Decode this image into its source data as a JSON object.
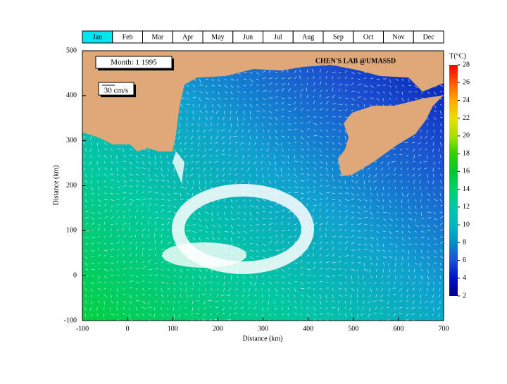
{
  "chart_data": {
    "type": "map",
    "months": [
      {
        "label": "Jan",
        "active": true
      },
      {
        "label": "Feb",
        "active": false
      },
      {
        "label": "Mar",
        "active": false
      },
      {
        "label": "Apr",
        "active": false
      },
      {
        "label": "May",
        "active": false
      },
      {
        "label": "Jun",
        "active": false
      },
      {
        "label": "Jul",
        "active": false
      },
      {
        "label": "Aug",
        "active": false
      },
      {
        "label": "Sep",
        "active": false
      },
      {
        "label": "Oct",
        "active": false
      },
      {
        "label": "Nov",
        "active": false
      },
      {
        "label": "Dec",
        "active": false
      }
    ],
    "active_color": "#00e5ee",
    "month_label": "Month:  1   1995",
    "scale_label": "30 cm/s",
    "annotation": "CHEN'S  LAB @UMASSD",
    "annotation_color": "#ff2020",
    "xlabel": "Distance (km)",
    "ylabel": "Distance (km)",
    "xlim": [
      -100,
      700
    ],
    "xticks": [
      -100,
      0,
      100,
      200,
      300,
      400,
      500,
      600,
      700
    ],
    "ylim": [
      -100,
      500
    ],
    "yticks": [
      -100,
      0,
      100,
      200,
      300,
      400,
      500
    ],
    "colorbar": {
      "label": "T(°C)",
      "lim": [
        2,
        28
      ],
      "ticks": [
        2,
        4,
        6,
        8,
        10,
        12,
        14,
        16,
        18,
        20,
        22,
        24,
        26,
        28
      ],
      "colors": [
        "#00008b",
        "#0010c8",
        "#1a50d8",
        "#0090c8",
        "#00b8c0",
        "#00c8a8",
        "#00d070",
        "#00c830",
        "#30d000",
        "#a8e000",
        "#e8e000",
        "#ffa800",
        "#ff5800",
        "#ff0000"
      ]
    }
  }
}
